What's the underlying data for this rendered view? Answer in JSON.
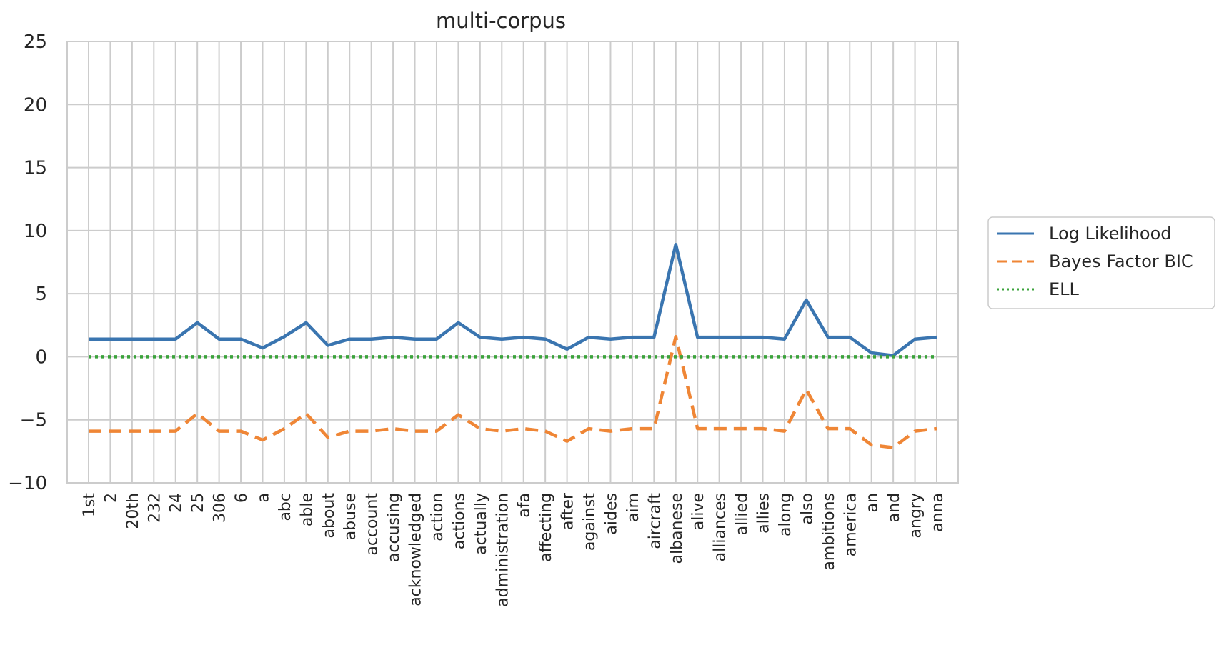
{
  "chart_data": {
    "type": "line",
    "title": "multi-corpus",
    "xlabel": "",
    "ylabel": "",
    "ylim": [
      -10,
      25
    ],
    "yticks": [
      -10,
      -5,
      0,
      5,
      10,
      15,
      20,
      25
    ],
    "ytick_labels": [
      "−10",
      "−5",
      "0",
      "5",
      "10",
      "15",
      "20",
      "25"
    ],
    "grid": true,
    "legend_position": "right, outside",
    "categories": [
      "1st",
      "2",
      "20th",
      "232",
      "24",
      "25",
      "306",
      "6",
      "a",
      "abc",
      "able",
      "about",
      "abuse",
      "account",
      "accusing",
      "acknowledged",
      "action",
      "actions",
      "actually",
      "administration",
      "afa",
      "affecting",
      "after",
      "against",
      "aides",
      "aim",
      "aircraft",
      "albanese",
      "alive",
      "alliances",
      "allied",
      "allies",
      "along",
      "also",
      "ambitions",
      "america",
      "an",
      "and",
      "angry",
      "anna"
    ],
    "series": [
      {
        "name": "Log Likelihood",
        "color": "#3a75b0",
        "style": "solid",
        "values": [
          1.4,
          1.4,
          1.4,
          1.4,
          1.4,
          2.7,
          1.4,
          1.4,
          0.7,
          1.6,
          2.7,
          0.9,
          1.4,
          1.4,
          1.55,
          1.4,
          1.4,
          2.7,
          1.55,
          1.4,
          1.55,
          1.4,
          0.6,
          1.55,
          1.4,
          1.55,
          1.55,
          8.9,
          1.55,
          1.55,
          1.55,
          1.55,
          1.4,
          4.5,
          1.55,
          1.55,
          0.3,
          0.1,
          1.4,
          1.55
        ]
      },
      {
        "name": "Bayes Factor BIC",
        "color": "#ef8636",
        "style": "dashed",
        "values": [
          -5.9,
          -5.9,
          -5.9,
          -5.9,
          -5.9,
          -4.5,
          -5.9,
          -5.9,
          -6.6,
          -5.7,
          -4.5,
          -6.4,
          -5.9,
          -5.9,
          -5.7,
          -5.9,
          -5.9,
          -4.6,
          -5.7,
          -5.9,
          -5.7,
          -5.9,
          -6.7,
          -5.7,
          -5.9,
          -5.7,
          -5.7,
          1.6,
          -5.7,
          -5.7,
          -5.7,
          -5.7,
          -5.9,
          -2.6,
          -5.7,
          -5.7,
          -7.0,
          -7.2,
          -5.9,
          -5.7
        ]
      },
      {
        "name": "ELL",
        "color": "#3ba33b",
        "style": "dotted",
        "values": [
          0,
          0,
          0,
          0,
          0,
          0,
          0,
          0,
          0,
          0,
          0,
          0,
          0,
          0,
          0,
          0,
          0,
          0,
          0,
          0,
          0,
          0,
          0,
          0,
          0,
          0,
          0,
          0,
          0,
          0,
          0,
          0,
          0,
          0,
          0,
          0,
          0,
          0,
          0,
          0
        ]
      }
    ]
  }
}
